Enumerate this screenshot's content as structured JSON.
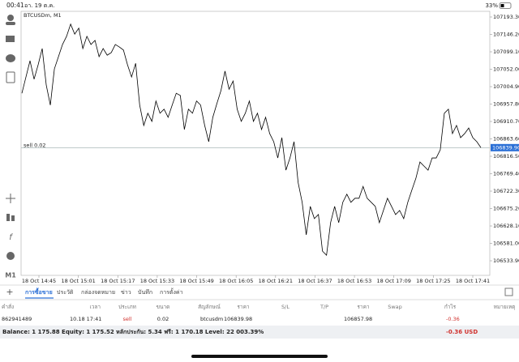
{
  "status_bar": {
    "time": "00:41",
    "date": "อา. 19 ต.ค.",
    "battery": "33%"
  },
  "chart": {
    "type": "line",
    "title": "BTCUSDm, M1",
    "color": "#000000",
    "values": [
      106987,
      107031,
      107075,
      107025,
      107064,
      107108,
      107009,
      106955,
      107053,
      107086,
      107119,
      107141,
      107174,
      107147,
      107163,
      107108,
      107141,
      107119,
      107130,
      107086,
      107108,
      107090,
      107097,
      107119,
      107112,
      107104,
      107064,
      107031,
      107068,
      106955,
      106900,
      106933,
      106911,
      106966,
      106933,
      106944,
      106922,
      106955,
      106987,
      106981,
      106889,
      106944,
      106933,
      106966,
      106955,
      106900,
      106856,
      106922,
      106959,
      106994,
      107047,
      106998,
      107020,
      106944,
      106911,
      106933,
      106966,
      106911,
      106933,
      106889,
      106922,
      106878,
      106856,
      106812,
      106867,
      106779,
      106812,
      106856,
      106746,
      106692,
      106604,
      106681,
      106648,
      106659,
      106560,
      106549,
      106637,
      106681,
      106637,
      106692,
      106714,
      106692,
      106703,
      106703,
      106735,
      106703,
      106692,
      106681,
      106637,
      106670,
      106703,
      106681,
      106659,
      106670,
      106648,
      106692,
      106725,
      106757,
      106801,
      106790,
      106779,
      106812,
      106812,
      106834,
      106933,
      106944,
      106878,
      106900,
      106867,
      106878,
      106893,
      106867,
      106856,
      106840
    ],
    "ylim": [
      106494.5,
      107208.6
    ],
    "yticks": [
      {
        "value": 107193.3,
        "label": "107193.30"
      },
      {
        "value": 107146.2,
        "label": "107146.20"
      },
      {
        "value": 107099.1,
        "label": "107099.10"
      },
      {
        "value": 107052,
        "label": "107052.00"
      },
      {
        "value": 107004.9,
        "label": "107004.90"
      },
      {
        "value": 106957.8,
        "label": "106957.80"
      },
      {
        "value": 106910.7,
        "label": "106910.70"
      },
      {
        "value": 106863.6,
        "label": "106863.60"
      },
      {
        "value": 106816.5,
        "label": "106816.50"
      },
      {
        "value": 106769.4,
        "label": "106769.40"
      },
      {
        "value": 106722.3,
        "label": "106722.30"
      },
      {
        "value": 106675.2,
        "label": "106675.20"
      },
      {
        "value": 106628.1,
        "label": "106628.10"
      },
      {
        "value": 106581,
        "label": "106581.00"
      },
      {
        "value": 106533.9,
        "label": "106533.90"
      }
    ],
    "xticks": [
      "18 Oct 14:45",
      "18 Oct 15:01",
      "18 Oct 15:17",
      "18 Oct 15:33",
      "18 Oct 15:49",
      "18 Oct 16:05",
      "18 Oct 16:21",
      "18 Oct 16:37",
      "18 Oct 16:53",
      "18 Oct 17:09",
      "18 Oct 17:25",
      "18 Oct 17:41"
    ],
    "price_line": {
      "label": "sell 0.02",
      "value": 106839.9,
      "value_label": "106839.90"
    }
  },
  "toolbar": {
    "timeframe": "M1"
  },
  "tabs": [
    "การซื้อขาย",
    "ประวัติ",
    "กล่องจดหมาย",
    "ข่าว",
    "บันทึก",
    "การตั้งค่า"
  ],
  "table": {
    "headers": [
      "คำสั่ง",
      "เวลา",
      "ประเภท",
      "ขนาด",
      "สัญลักษณ์",
      "ราคา",
      "S/L",
      "T/P",
      "ราคา",
      "Swap",
      "กำไร",
      "หมายเหตุ"
    ],
    "rows": [
      {
        "order": "862941489",
        "time": "10.18 17:41",
        "type": "sell",
        "volume": "0.02",
        "symbol": "btcusdm",
        "price": "106839.98",
        "current_price": "106857.98",
        "profit": "-0.36"
      }
    ]
  },
  "balance": {
    "text": "Balance: 1 175.88 Equity: 1 175.52 หลักประกัน: 5.34 ฟรี: 1 170.18 Level: 22 003.39%",
    "profit": "-0.36 USD"
  }
}
